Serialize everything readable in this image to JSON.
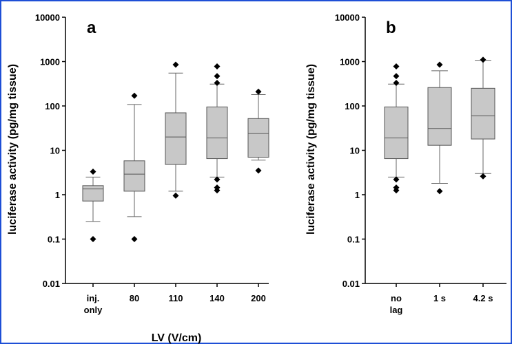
{
  "colors": {
    "frame": "#1e4fd6",
    "box_fill": "#c8c8c8",
    "box_stroke": "#555555",
    "whisker": "#666666",
    "outlier": "#000000",
    "axis": "#000000"
  },
  "chart_data": [
    {
      "type": "box",
      "panel_label": "a",
      "ylabel": "luciferase activity (pg/mg tissue)",
      "xlabel": "LV (V/cm)",
      "y_scale": "log",
      "ylim": [
        0.01,
        10000
      ],
      "y_ticks": [
        {
          "value": 0.01,
          "label": "0.01"
        },
        {
          "value": 0.1,
          "label": "0.1"
        },
        {
          "value": 1,
          "label": "1"
        },
        {
          "value": 10,
          "label": "10"
        },
        {
          "value": 100,
          "label": "100"
        },
        {
          "value": 1000,
          "label": "1000"
        },
        {
          "value": 10000,
          "label": "10000"
        }
      ],
      "categories": [
        {
          "label_lines": [
            "inj.",
            "only"
          ],
          "whisker_low": 0.25,
          "q1": 0.72,
          "median": 1.35,
          "q3": 1.6,
          "whisker_high": 2.5,
          "outliers": [
            0.1,
            3.3
          ]
        },
        {
          "label_lines": [
            "80"
          ],
          "whisker_low": 0.32,
          "q1": 1.2,
          "median": 2.9,
          "q3": 5.8,
          "whisker_high": 108,
          "outliers": [
            0.1,
            170
          ]
        },
        {
          "label_lines": [
            "110"
          ],
          "whisker_low": 1.2,
          "q1": 4.8,
          "median": 20,
          "q3": 70,
          "whisker_high": 550,
          "outliers": [
            0.95,
            850
          ]
        },
        {
          "label_lines": [
            "140"
          ],
          "whisker_low": 2.5,
          "q1": 6.5,
          "median": 19,
          "q3": 95,
          "whisker_high": 310,
          "outliers": [
            1.25,
            1.45,
            2.2,
            330,
            470,
            780
          ]
        },
        {
          "label_lines": [
            "200"
          ],
          "whisker_low": 6,
          "q1": 7,
          "median": 24,
          "q3": 52,
          "whisker_high": 180,
          "outliers": [
            3.5,
            210
          ]
        }
      ]
    },
    {
      "type": "box",
      "panel_label": "b",
      "ylabel": "luciferase activity (pg/mg tissue)",
      "xlabel": "",
      "y_scale": "log",
      "ylim": [
        0.01,
        10000
      ],
      "y_ticks": [
        {
          "value": 0.01,
          "label": "0.01"
        },
        {
          "value": 0.1,
          "label": "0.1"
        },
        {
          "value": 1,
          "label": "1"
        },
        {
          "value": 10,
          "label": "10"
        },
        {
          "value": 100,
          "label": "100"
        },
        {
          "value": 1000,
          "label": "1000"
        },
        {
          "value": 10000,
          "label": "10000"
        }
      ],
      "categories": [
        {
          "label_lines": [
            "no",
            "lag"
          ],
          "whisker_low": 2.5,
          "q1": 6.5,
          "median": 19,
          "q3": 95,
          "whisker_high": 310,
          "outliers": [
            1.25,
            1.45,
            2.2,
            330,
            470,
            780
          ]
        },
        {
          "label_lines": [
            "1 s"
          ],
          "whisker_low": 1.8,
          "q1": 13,
          "median": 31,
          "q3": 260,
          "whisker_high": 620,
          "outliers": [
            1.2,
            850
          ]
        },
        {
          "label_lines": [
            "4.2 s"
          ],
          "whisker_low": 3,
          "q1": 18,
          "median": 60,
          "q3": 250,
          "whisker_high": 1070,
          "outliers": [
            2.6,
            1100
          ]
        }
      ]
    }
  ]
}
